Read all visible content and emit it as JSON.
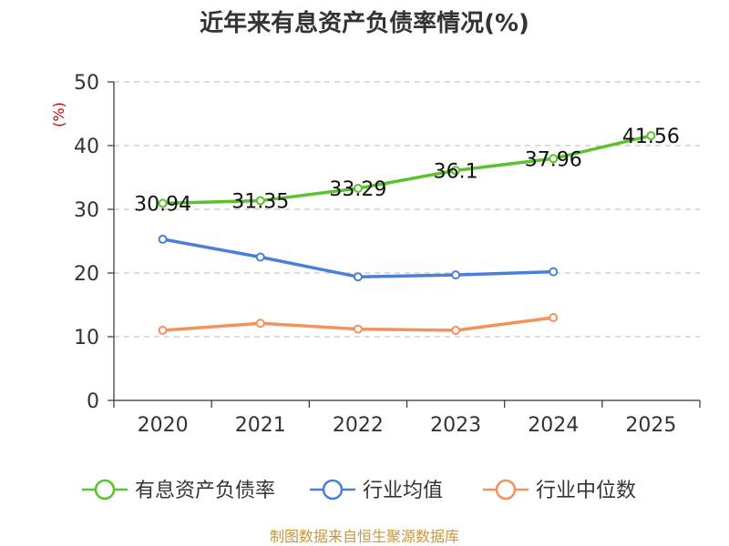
{
  "chart_data": {
    "type": "line",
    "title": "近年来有息资产负债率情况(%)",
    "ylabel": "(%)",
    "xlabel": "",
    "categories": [
      "2020",
      "2021",
      "2022",
      "2023",
      "2024",
      "2025"
    ],
    "ylim": [
      0,
      50
    ],
    "yticks": [
      0,
      10,
      20,
      30,
      40,
      50
    ],
    "grid": true,
    "legend_position": "bottom",
    "series": [
      {
        "name": "有息资产负债率",
        "color": "#5ac22a",
        "values": [
          30.94,
          31.35,
          33.29,
          36.1,
          37.96,
          41.56
        ],
        "labels": [
          "30.94",
          "31.35",
          "33.29",
          "36.1",
          "37.96",
          "41.56"
        ]
      },
      {
        "name": "行业均值",
        "color": "#4a7fd8",
        "values": [
          25.3,
          22.5,
          19.4,
          19.7,
          20.2,
          null
        ]
      },
      {
        "name": "行业中位数",
        "color": "#f5915a",
        "values": [
          11.0,
          12.1,
          11.2,
          11.0,
          13.0,
          null
        ]
      }
    ]
  },
  "source": "制图数据来自恒生聚源数据库"
}
